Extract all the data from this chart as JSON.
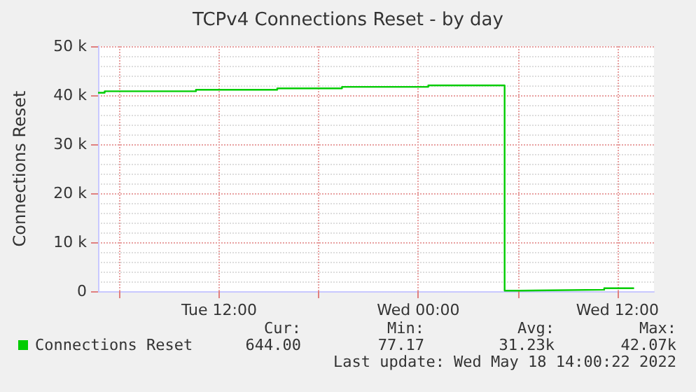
{
  "chart_data": {
    "type": "step",
    "title": "TCPv4 Connections Reset - by day",
    "ylabel": "Connections Reset",
    "x": [
      "2022-05-17T04:42",
      "2022-05-17T05:06",
      "2022-05-17T10:36",
      "2022-05-17T15:30",
      "2022-05-17T19:24",
      "2022-05-18T00:36",
      "2022-05-18T05:00",
      "2022-05-18T05:12",
      "2022-05-18T06:06",
      "2022-05-18T11:12",
      "2022-05-18T13:00"
    ],
    "series": [
      {
        "name": "Connections Reset",
        "color": "#00cc00",
        "values": [
          40.5,
          40.8,
          41.1,
          41.4,
          41.7,
          42.0,
          42.0,
          0.1,
          0.3,
          0.6,
          0.6
        ]
      }
    ],
    "xlim": [
      "2022-05-17T04:42",
      "2022-05-18T14:12"
    ],
    "xticks": [
      {
        "value": "2022-05-17T06:00",
        "label": null
      },
      {
        "value": "2022-05-17T12:00",
        "label": "Tue 12:00"
      },
      {
        "value": "2022-05-17T18:00",
        "label": null
      },
      {
        "value": "2022-05-18T00:00",
        "label": "Wed 00:00"
      },
      {
        "value": "2022-05-18T06:00",
        "label": null
      },
      {
        "value": "2022-05-18T12:00",
        "label": "Wed 12:00"
      }
    ],
    "ylim": [
      0,
      50
    ],
    "yticks": [
      {
        "value": 0,
        "label": "0"
      },
      {
        "value": 10,
        "label": "10 k"
      },
      {
        "value": 20,
        "label": "20 k"
      },
      {
        "value": 30,
        "label": "30 k"
      },
      {
        "value": 40,
        "label": "40 k"
      },
      {
        "value": 50,
        "label": "50 k"
      }
    ],
    "grid": true,
    "legend": "bottom left",
    "annotations": [
      "Cur:",
      "644.00",
      "Min:",
      "77.17",
      "Avg:",
      "31.23k",
      "Max:",
      "42.07k",
      "Last update: Wed May 18 14:00:22 2022"
    ]
  }
}
